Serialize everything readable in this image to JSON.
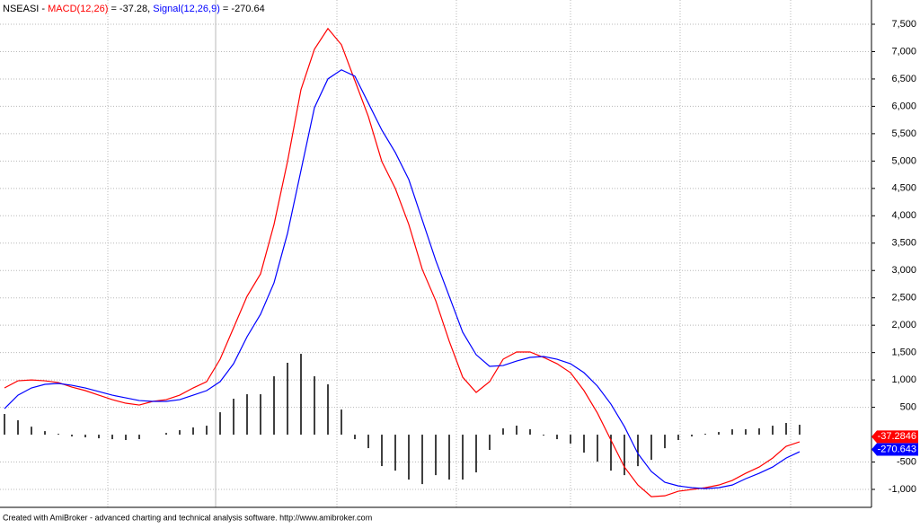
{
  "chart_data": {
    "type": "line",
    "title": "NSEASI -",
    "footer": "Created with AmiBroker - advanced charting and technical analysis software. http://www.amibroker.com",
    "ylim": [
      -1328,
      7943
    ],
    "yticks": [
      {
        "value": -1000,
        "label": "-1,000"
      },
      -500,
      500,
      {
        "value": 1000,
        "label": "1,000"
      },
      {
        "value": 1500,
        "label": "1,500"
      },
      {
        "value": 2000,
        "label": "2,000"
      },
      {
        "value": 2500,
        "label": "2,500"
      },
      {
        "value": 3000,
        "label": "3,000"
      },
      {
        "value": 3500,
        "label": "3,500"
      },
      {
        "value": 4000,
        "label": "4,000"
      },
      {
        "value": 4500,
        "label": "4,500"
      },
      {
        "value": 5000,
        "label": "5,000"
      },
      {
        "value": 5500,
        "label": "5,500"
      },
      {
        "value": 6000,
        "label": "6,000"
      },
      {
        "value": 6500,
        "label": "6,500"
      },
      {
        "value": 7000,
        "label": "7,000"
      },
      {
        "value": 7500,
        "label": "7,500"
      }
    ],
    "grid": true,
    "series": [
      {
        "name": "MACD(12,26)",
        "header_text": "= -37.28,",
        "color": "#ff0000",
        "last_value": -37.2846,
        "values": [
          854,
          985,
          1000,
          985,
          952,
          870,
          805,
          722,
          640,
          575,
          542,
          608,
          640,
          722,
          854,
          969,
          1379,
          1954,
          2529,
          2939,
          3842,
          4992,
          6305,
          7044,
          7422,
          7126,
          6470,
          5813,
          4992,
          4499,
          3842,
          3021,
          2447,
          1708,
          1051,
          772,
          969,
          1379,
          1511,
          1511,
          1412,
          1297,
          1133,
          805,
          394,
          -99,
          -591,
          -920,
          -1133,
          -1117,
          -1034,
          -1002,
          -969,
          -920,
          -837,
          -706,
          -591,
          -427,
          -213,
          -131
        ]
      },
      {
        "name": "Signal(12,26,9)",
        "header_text": "= -270.64",
        "color": "#0000ff",
        "last_value": -270.643,
        "values": [
          476,
          722,
          854,
          920,
          936,
          903,
          854,
          788,
          722,
          673,
          624,
          608,
          608,
          640,
          722,
          805,
          969,
          1297,
          1790,
          2200,
          2775,
          3678,
          4828,
          5977,
          6502,
          6667,
          6552,
          6059,
          5566,
          5156,
          4663,
          3924,
          3186,
          2529,
          1872,
          1461,
          1248,
          1264,
          1346,
          1412,
          1429,
          1379,
          1297,
          1133,
          887,
          558,
          148,
          -345,
          -673,
          -870,
          -936,
          -969,
          -985,
          -969,
          -920,
          -805,
          -706,
          -591,
          -427,
          -312
        ]
      }
    ],
    "histogram": {
      "color": "#000000",
      "values": [
        378,
        263,
        146,
        65,
        16,
        -33,
        -49,
        -66,
        -82,
        -98,
        -82,
        0,
        32,
        82,
        132,
        164,
        410,
        657,
        739,
        739,
        1067,
        1314,
        1477,
        1067,
        920,
        459,
        -82,
        -246,
        -574,
        -657,
        -821,
        -903,
        -739,
        -821,
        -821,
        -689,
        -279,
        115,
        165,
        99,
        -17,
        -82,
        -164,
        -328,
        -493,
        -657,
        -739,
        -575,
        -460,
        -247,
        -98,
        -33,
        16,
        49,
        98,
        99,
        115,
        164,
        214,
        181
      ]
    }
  }
}
